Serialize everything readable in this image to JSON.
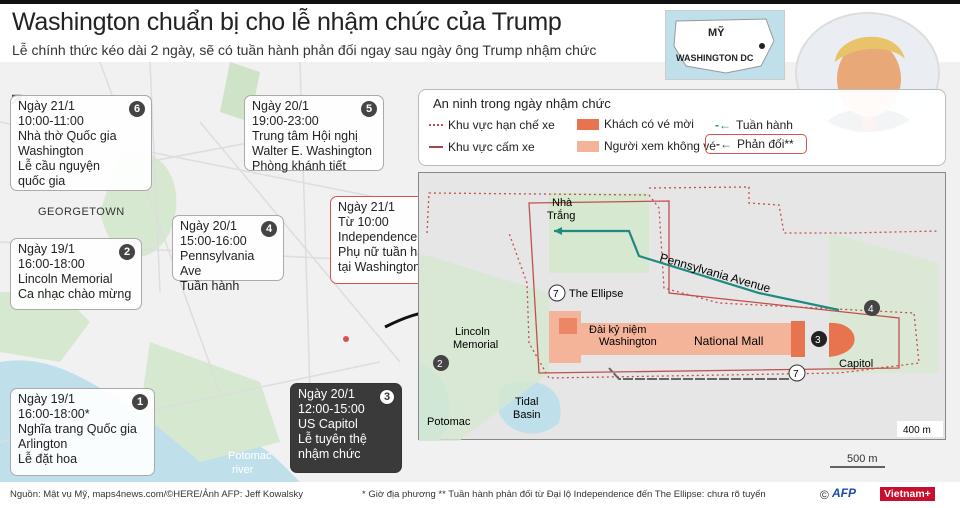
{
  "title": "Washington chuẩn bị cho lễ nhậm chức của Trump",
  "subtitle": "Lễ chính thức kéo dài 2 ngày, sẽ có tuần hành phản đối ngay sau ngày ông Trump nhậm chức",
  "locator": {
    "country": "MỸ",
    "city": "WASHINGTON DC"
  },
  "events": [
    {
      "num": "6",
      "lines": [
        "Ngày 21/1",
        "10:00-11:00",
        "Nhà thờ Quốc gia",
        "Washington",
        "Lễ cầu nguyện",
        "quốc gia"
      ]
    },
    {
      "num": "5",
      "lines": [
        "Ngày 20/1",
        "19:00-23:00",
        "Trung tâm Hội nghị",
        "Walter E. Washington",
        "Phòng khánh tiết"
      ]
    },
    {
      "num": "4",
      "lines": [
        "Ngày 20/1",
        "15:00-16:00",
        "Pennsylvania Ave",
        "Tuần hành"
      ]
    },
    {
      "num": "7",
      "lines": [
        "Ngày 21/1",
        "Từ 10:00",
        "Independence Ave",
        "Phụ nữ tuần hành",
        "tại Washington**"
      ]
    },
    {
      "num": "2",
      "lines": [
        "Ngày 19/1",
        "16:00-18:00",
        "Lincoln Memorial",
        "Ca nhạc chào mừng"
      ]
    },
    {
      "num": "1",
      "lines": [
        "Ngày 19/1",
        "16:00-18:00*",
        "Nghĩa trang Quốc gia",
        "Arlington",
        "Lễ đặt hoa"
      ]
    },
    {
      "num": "3",
      "lines": [
        "Ngày 20/1",
        "12:00-15:00",
        "US Capitol",
        "Lễ tuyên thệ",
        "nhậm chức"
      ]
    }
  ],
  "legend": {
    "title": "An ninh trong ngày nhậm chức",
    "items": [
      "Khu vực hạn chế xe",
      "Khu vực cấm xe",
      "Khách có vé mời",
      "Người xem không vé",
      "Tuần hành",
      "Phản đối**"
    ]
  },
  "colors": {
    "restricted": "#c0504d",
    "invited": "#e8734f",
    "public": "#f3b49a",
    "march": "#1f8a80",
    "protest": "#555555",
    "park": "#cfe3c8",
    "water": "#bfe0ea"
  },
  "map_labels": {
    "georgetown": "GEORGETOWN",
    "potomac": "Potomac",
    "potomac_river": "Potomac",
    "river": "river",
    "scale": "500 m"
  },
  "inset_labels": {
    "white_house": [
      "Nhà",
      "Trắng"
    ],
    "ellipse": "The Ellipse",
    "penn": "Pennsylvania Avenue",
    "lincoln": [
      "Lincoln",
      "Memorial"
    ],
    "monument": [
      "Đài kỷ niệm",
      "Washington"
    ],
    "mall": "National Mall",
    "capitol": "Capitol",
    "potomac": "Potomac",
    "tidal": [
      "Tidal",
      "Basin"
    ],
    "scale": "400 m"
  },
  "footer": {
    "source": "Nguồn: Mật vụ Mỹ, maps4news.com/©HERE/Ảnh AFP: Jeff Kowalsky",
    "notes": "* Giờ địa phương  ** Tuần hành phản đối từ Đại lộ Independence đến The Ellipse: chưa rõ tuyến",
    "copyright": "©",
    "afp": "AFP",
    "vietnamplus": "Vietnam+"
  }
}
